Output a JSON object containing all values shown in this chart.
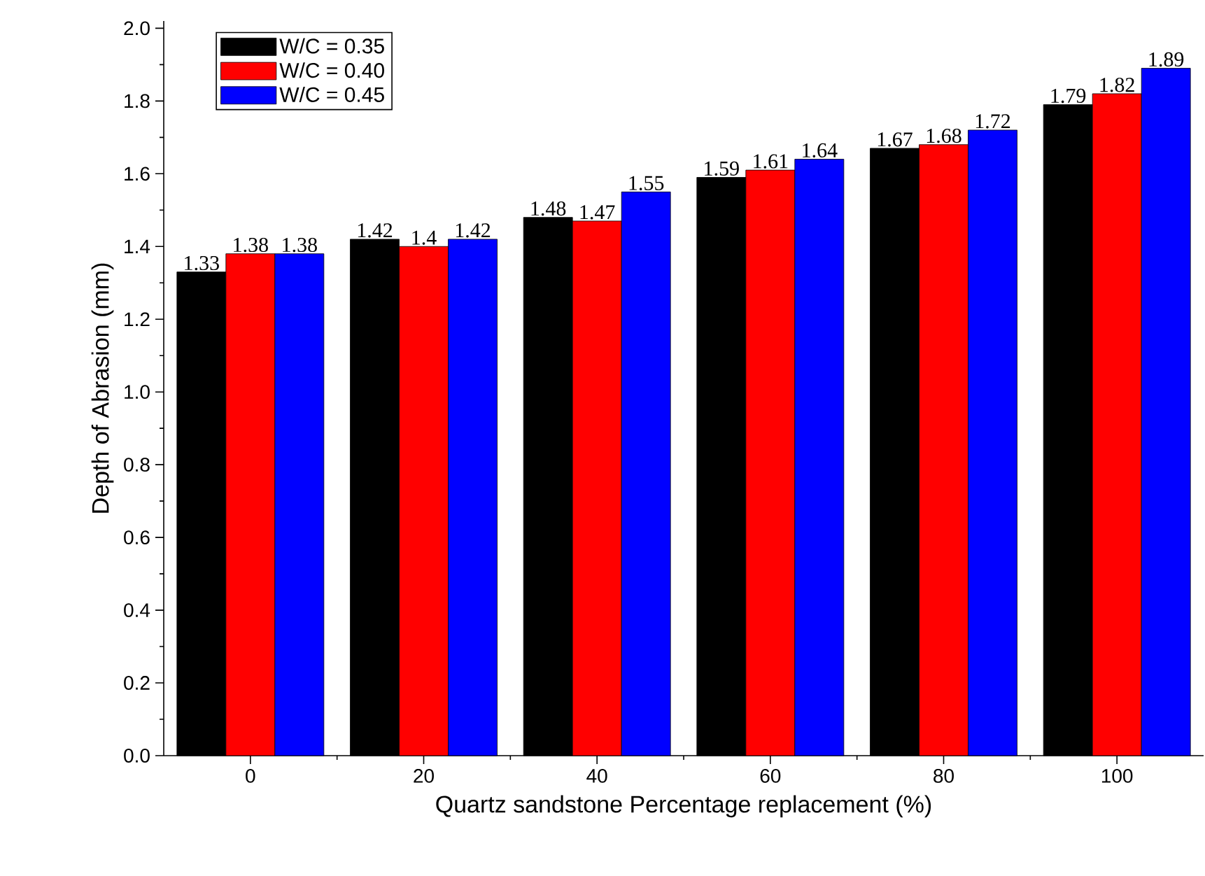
{
  "chart_data": {
    "type": "bar",
    "xlabel": "Quartz sandstone Percentage replacement (%)",
    "ylabel": "Depth of Abrasion (mm)",
    "categories": [
      "0",
      "20",
      "40",
      "60",
      "80",
      "100"
    ],
    "series": [
      {
        "name": "W/C = 0.35",
        "color": "#000000",
        "values": [
          1.33,
          1.42,
          1.48,
          1.59,
          1.67,
          1.79
        ],
        "value_labels": [
          "1.33",
          "1.42",
          "1.48",
          "1.59",
          "1.67",
          "1.79"
        ]
      },
      {
        "name": "W/C = 0.40",
        "color": "#ff0000",
        "values": [
          1.38,
          1.4,
          1.47,
          1.61,
          1.68,
          1.82
        ],
        "value_labels": [
          "1.38",
          "1.4",
          "1.47",
          "1.61",
          "1.68",
          "1.82"
        ]
      },
      {
        "name": "W/C = 0.45",
        "color": "#0000ff",
        "values": [
          1.38,
          1.42,
          1.55,
          1.64,
          1.72,
          1.89
        ],
        "value_labels": [
          "1.38",
          "1.42",
          "1.55",
          "1.64",
          "1.72",
          "1.89"
        ]
      }
    ],
    "ylim": [
      0,
      2.02
    ],
    "yticks": [
      {
        "value": 0,
        "label": "0.0"
      },
      0.2,
      0.4,
      0.6,
      0.8,
      {
        "value": 1.0,
        "label": "1.0"
      },
      1.2,
      1.4,
      1.6,
      1.8,
      {
        "value": 2.0,
        "label": "2.0"
      }
    ],
    "legend": "top left"
  }
}
